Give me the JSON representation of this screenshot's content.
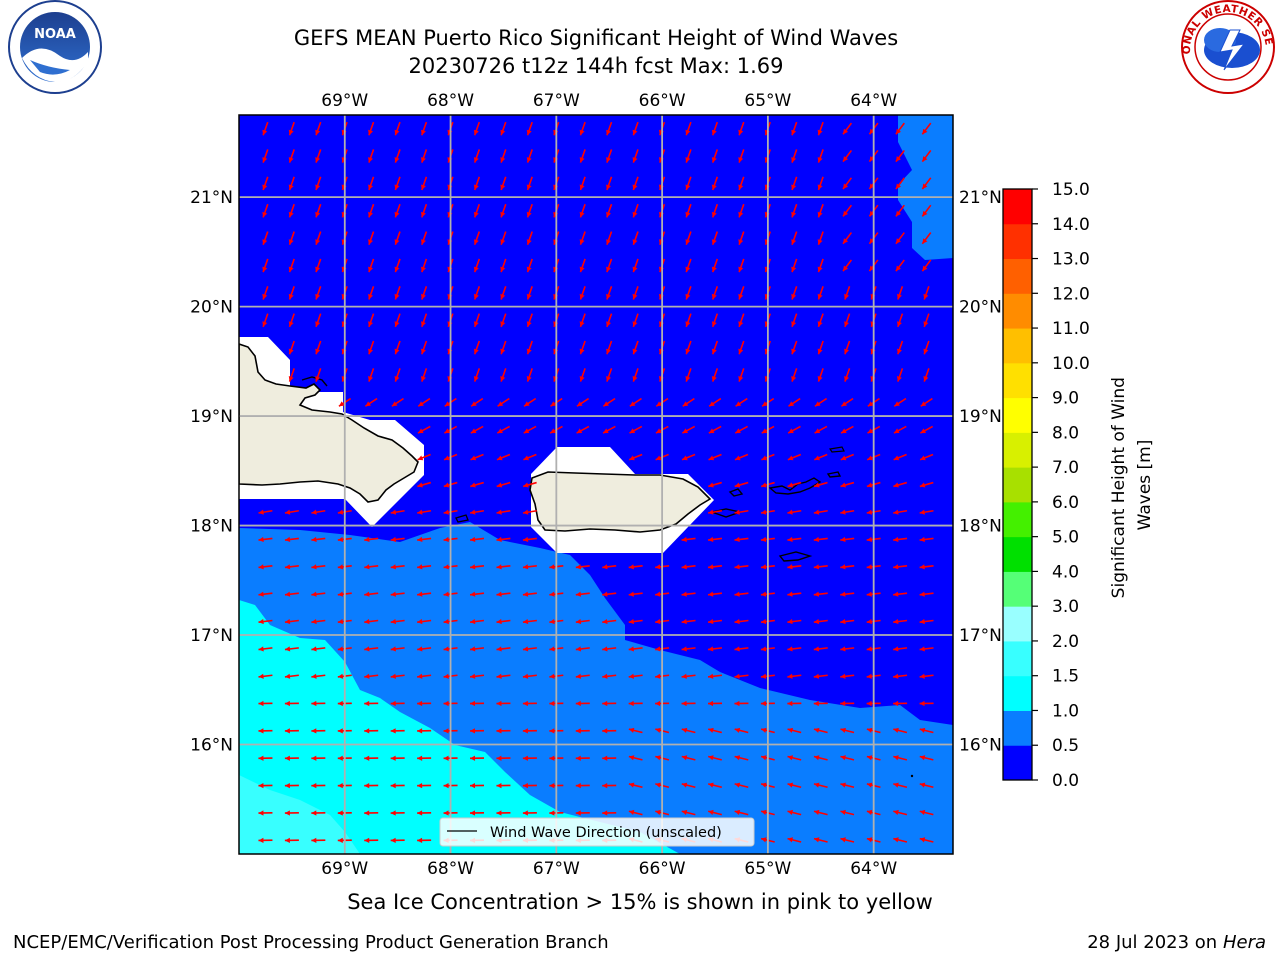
{
  "title_line1": "GEFS MEAN Puerto Rico Significant Height of Wind Waves",
  "title_line2": "20230726 t12z 144h fcst   Max: 1.69",
  "subtitle": "Sea Ice Concentration > 15% is shown in pink to yellow",
  "footer_left": "NCEP/EMC/Verification Post Processing Product Generation Branch",
  "footer_right_prefix": "28 Jul 2023 on ",
  "footer_right_host": "Hera",
  "logos": {
    "left": "NOAA",
    "right": "NATIONAL WEATHER SERVICE"
  },
  "map": {
    "lon_range": [
      -70.0,
      -63.25
    ],
    "lat_range": [
      15.0,
      21.75
    ],
    "lon_ticks": [
      -69,
      -68,
      -67,
      -66,
      -65,
      -64
    ],
    "lon_labels": [
      "69°W",
      "68°W",
      "67°W",
      "66°W",
      "65°W",
      "64°W"
    ],
    "lat_ticks": [
      16,
      17,
      18,
      19,
      20,
      21
    ],
    "lat_labels": [
      "16°N",
      "17°N",
      "18°N",
      "19°N",
      "20°N",
      "21°N"
    ],
    "legend_label": "Wind Wave Direction (unscaled)",
    "arrow_color": "#ff0000",
    "land_color": "#efedde"
  },
  "colorbar": {
    "label": "Significant Height of Wind Waves [m]",
    "levels": [
      0.0,
      0.5,
      1.0,
      1.5,
      2.0,
      3.0,
      4.0,
      5.0,
      6.0,
      7.0,
      8.0,
      9.0,
      10.0,
      11.0,
      12.0,
      13.0,
      14.0,
      15.0
    ],
    "tick_labels": [
      "0.0",
      "0.5",
      "1.0",
      "1.5",
      "2.0",
      "3.0",
      "4.0",
      "5.0",
      "6.0",
      "7.0",
      "8.0",
      "9.0",
      "10.0",
      "11.0",
      "12.0",
      "13.0",
      "14.0",
      "15.0"
    ],
    "colors": [
      "#0000ff",
      "#0a7dff",
      "#00ffff",
      "#38ffff",
      "#99ffff",
      "#55ff77",
      "#00e000",
      "#44f000",
      "#a8e000",
      "#d8f000",
      "#ffff00",
      "#ffe000",
      "#ffbf00",
      "#ff8c00",
      "#ff6000",
      "#ff3000",
      "#ff0000"
    ]
  },
  "chart_data": {
    "type": "heatmap",
    "title": "GEFS MEAN Puerto Rico Significant Height of Wind Waves",
    "variable": "Significant Height of Wind Waves [m]",
    "units": "m",
    "max": 1.69,
    "regions": [
      {
        "area": "north of ~18°N (Atlantic)",
        "range_m": [
          0.0,
          0.5
        ]
      },
      {
        "area": "far northeast corner (~63.5°W, 20.5–21.7°N)",
        "range_m": [
          0.5,
          1.0
        ]
      },
      {
        "area": "Caribbean south of Puerto Rico / Hispaniola",
        "range_m": [
          0.5,
          1.0
        ]
      },
      {
        "area": "southwest corner (~70–68°W, 15–17°N)",
        "range_m": [
          1.0,
          1.5
        ]
      },
      {
        "area": "extreme southwest (~70–69°W, 15–15.6°N)",
        "range_m": [
          1.5,
          2.0
        ]
      }
    ]
  }
}
